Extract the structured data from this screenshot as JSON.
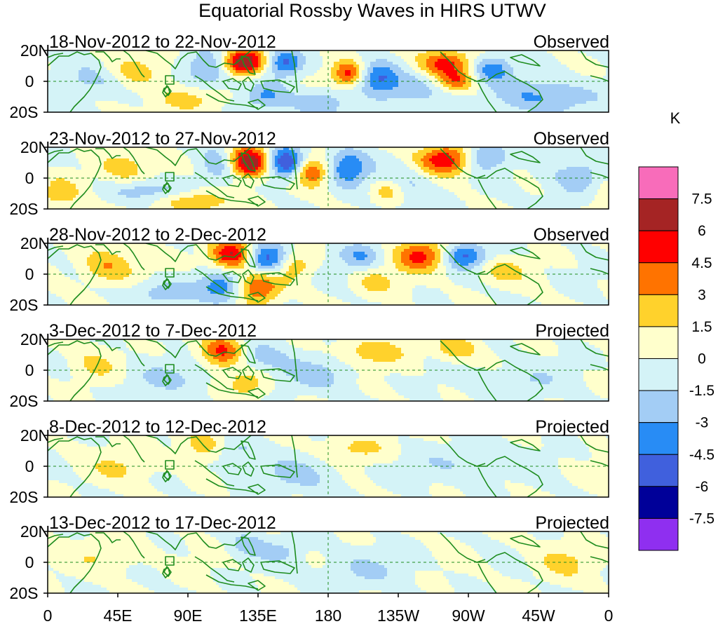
{
  "title": "Equatorial Rossby Waves in HIRS UTWV",
  "lat_labels": [
    "20N",
    "0",
    "20S"
  ],
  "lon_labels": [
    "0",
    "45E",
    "90E",
    "135E",
    "180",
    "135W",
    "90W",
    "45W",
    "0"
  ],
  "panels": [
    {
      "period": "18-Nov-2012 to 22-Nov-2012",
      "status": "Observed"
    },
    {
      "period": "23-Nov-2012 to 27-Nov-2012",
      "status": "Observed"
    },
    {
      "period": "28-Nov-2012 to 2-Dec-2012",
      "status": "Observed"
    },
    {
      "period": "3-Dec-2012 to 7-Dec-2012",
      "status": "Projected"
    },
    {
      "period": "8-Dec-2012 to 12-Dec-2012",
      "status": "Projected"
    },
    {
      "period": "13-Dec-2012 to 17-Dec-2012",
      "status": "Projected"
    }
  ],
  "colorbar": {
    "unit": "K",
    "labels": [
      "7.5",
      "6",
      "4.5",
      "3",
      "1.5",
      "0",
      "-1.5",
      "-3",
      "-4.5",
      "-6",
      "-7.5"
    ],
    "colors": [
      "#f86cba",
      "#a52424",
      "#ff0000",
      "#ff7300",
      "#ffd22c",
      "#ffffcc",
      "#d4f3f7",
      "#a3cdf5",
      "#288cf5",
      "#4060dd",
      "#000099",
      "#8f2ff0"
    ]
  },
  "map_colors": {
    "coast": "#1e8c1e",
    "neutral_positive": "#ffffcc",
    "neutral_negative": "#d4f3f7"
  },
  "chart_data": {
    "type": "heatmap",
    "title": "Equatorial Rossby Waves in HIRS UTWV",
    "variable": "HIRS UTWV anomaly",
    "unit": "K",
    "x_range": [
      0,
      360
    ],
    "y_range": [
      -20,
      20
    ],
    "contour_levels": [
      -7.5,
      -6,
      -4.5,
      -3,
      -1.5,
      0,
      1.5,
      3,
      4.5,
      6,
      7.5
    ],
    "panels": [
      {
        "label": "18-Nov-2012 to 22-Nov-2012",
        "type": "Observed",
        "anomalies": [
          {
            "lon": 125,
            "lat": 12,
            "peak": 8.5,
            "w": 10,
            "h": 6
          },
          {
            "lon": 152,
            "lat": 12,
            "peak": -5,
            "w": 8,
            "h": 6
          },
          {
            "lon": 105,
            "lat": 8,
            "peak": -4,
            "w": 12,
            "h": 8
          },
          {
            "lon": 193,
            "lat": 5,
            "peak": 5,
            "w": 7,
            "h": 6
          },
          {
            "lon": 212,
            "lat": 3,
            "peak": -4,
            "w": 9,
            "h": 7
          },
          {
            "lon": 255,
            "lat": 12,
            "peak": 5,
            "w": 12,
            "h": 6
          },
          {
            "lon": 262,
            "lat": 0,
            "peak": 4,
            "w": 9,
            "h": 5
          },
          {
            "lon": 285,
            "lat": 8,
            "peak": -4,
            "w": 9,
            "h": 6
          },
          {
            "lon": 55,
            "lat": 6,
            "peak": 2.5,
            "w": 15,
            "h": 8
          },
          {
            "lon": 28,
            "lat": 2,
            "peak": -2.5,
            "w": 14,
            "h": 8
          },
          {
            "lon": 140,
            "lat": -10,
            "peak": -3,
            "w": 10,
            "h": 6
          },
          {
            "lon": 175,
            "lat": -14,
            "peak": -3,
            "w": 12,
            "h": 6
          },
          {
            "lon": 235,
            "lat": -5,
            "peak": -2,
            "w": 20,
            "h": 8
          },
          {
            "lon": 320,
            "lat": -10,
            "peak": -3,
            "w": 25,
            "h": 8
          },
          {
            "lon": 90,
            "lat": -12,
            "peak": 2,
            "w": 15,
            "h": 6
          }
        ]
      },
      {
        "label": "23-Nov-2012 to 27-Nov-2012",
        "type": "Observed",
        "anomalies": [
          {
            "lon": 128,
            "lat": 10,
            "peak": 8.5,
            "w": 10,
            "h": 7
          },
          {
            "lon": 152,
            "lat": 10,
            "peak": -6.5,
            "w": 8,
            "h": 7
          },
          {
            "lon": 170,
            "lat": 4,
            "peak": 4.5,
            "w": 7,
            "h": 6
          },
          {
            "lon": 193,
            "lat": 7,
            "peak": -4.5,
            "w": 9,
            "h": 8
          },
          {
            "lon": 112,
            "lat": 9,
            "peak": -3.5,
            "w": 10,
            "h": 8
          },
          {
            "lon": 255,
            "lat": 12,
            "peak": 6,
            "w": 13,
            "h": 7
          },
          {
            "lon": 280,
            "lat": 14,
            "peak": -4,
            "w": 10,
            "h": 6
          },
          {
            "lon": 48,
            "lat": 6,
            "peak": 2.5,
            "w": 12,
            "h": 8
          },
          {
            "lon": 70,
            "lat": -8,
            "peak": -3,
            "w": 20,
            "h": 5
          },
          {
            "lon": 5,
            "lat": -10,
            "peak": 2.5,
            "w": 12,
            "h": 8
          },
          {
            "lon": 95,
            "lat": -14,
            "peak": 3,
            "w": 18,
            "h": 6
          },
          {
            "lon": 218,
            "lat": -8,
            "peak": 3,
            "w": 8,
            "h": 6
          },
          {
            "lon": 230,
            "lat": -3,
            "peak": -2,
            "w": 15,
            "h": 10
          },
          {
            "lon": 340,
            "lat": 0,
            "peak": -2.5,
            "w": 15,
            "h": 10
          }
        ]
      },
      {
        "label": "28-Nov-2012 to 2-Dec-2012",
        "type": "Observed",
        "anomalies": [
          {
            "lon": 118,
            "lat": 12,
            "peak": 6.5,
            "w": 10,
            "h": 7
          },
          {
            "lon": 140,
            "lat": 9,
            "peak": -6,
            "w": 10,
            "h": 7
          },
          {
            "lon": 158,
            "lat": 6,
            "peak": 3,
            "w": 8,
            "h": 6
          },
          {
            "lon": 240,
            "lat": 12,
            "peak": 5,
            "w": 12,
            "h": 7
          },
          {
            "lon": 268,
            "lat": 12,
            "peak": -5,
            "w": 10,
            "h": 6
          },
          {
            "lon": 200,
            "lat": 12,
            "peak": -3,
            "w": 10,
            "h": 6
          },
          {
            "lon": 135,
            "lat": -8,
            "peak": 5,
            "w": 10,
            "h": 8
          },
          {
            "lon": 112,
            "lat": -8,
            "peak": -4,
            "w": 10,
            "h": 8
          },
          {
            "lon": 38,
            "lat": 5,
            "peak": 3,
            "w": 12,
            "h": 8
          },
          {
            "lon": 210,
            "lat": -5,
            "peak": 2,
            "w": 10,
            "h": 6
          },
          {
            "lon": 75,
            "lat": -12,
            "peak": -2.5,
            "w": 15,
            "h": 6
          },
          {
            "lon": 290,
            "lat": 2,
            "peak": 2,
            "w": 12,
            "h": 6
          }
        ]
      },
      {
        "label": "3-Dec-2012 to 7-Dec-2012",
        "type": "Projected",
        "anomalies": [
          {
            "lon": 112,
            "lat": 12,
            "peak": 5,
            "w": 10,
            "h": 7
          },
          {
            "lon": 135,
            "lat": 8,
            "peak": -2.5,
            "w": 12,
            "h": 7
          },
          {
            "lon": 210,
            "lat": 12,
            "peak": 2.5,
            "w": 15,
            "h": 6
          },
          {
            "lon": 262,
            "lat": 14,
            "peak": 2.5,
            "w": 10,
            "h": 6
          },
          {
            "lon": 128,
            "lat": -8,
            "peak": 2.5,
            "w": 10,
            "h": 7
          },
          {
            "lon": 30,
            "lat": 2,
            "peak": 2,
            "w": 12,
            "h": 8
          },
          {
            "lon": 70,
            "lat": -5,
            "peak": -1.8,
            "w": 20,
            "h": 8
          },
          {
            "lon": 170,
            "lat": -3,
            "peak": -1.8,
            "w": 20,
            "h": 8
          },
          {
            "lon": 300,
            "lat": -8,
            "peak": -1.8,
            "w": 20,
            "h": 8
          }
        ]
      },
      {
        "label": "8-Dec-2012 to 12-Dec-2012",
        "type": "Projected",
        "anomalies": [
          {
            "lon": 100,
            "lat": 14,
            "peak": 2.5,
            "w": 10,
            "h": 6
          },
          {
            "lon": 120,
            "lat": 10,
            "peak": -2,
            "w": 10,
            "h": 6
          },
          {
            "lon": 200,
            "lat": 12,
            "peak": 1.8,
            "w": 15,
            "h": 6
          },
          {
            "lon": 50,
            "lat": 0,
            "peak": 1.6,
            "w": 15,
            "h": 8
          },
          {
            "lon": 160,
            "lat": -6,
            "peak": -1.8,
            "w": 20,
            "h": 8
          },
          {
            "lon": 270,
            "lat": 2,
            "peak": -1.6,
            "w": 25,
            "h": 8
          }
        ]
      },
      {
        "label": "13-Dec-2012 to 17-Dec-2012",
        "type": "Projected",
        "anomalies": [
          {
            "lon": 128,
            "lat": 12,
            "peak": -2,
            "w": 8,
            "h": 6
          },
          {
            "lon": 150,
            "lat": 8,
            "peak": -1.8,
            "w": 10,
            "h": 6
          },
          {
            "lon": 40,
            "lat": 5,
            "peak": 1.6,
            "w": 15,
            "h": 8
          },
          {
            "lon": 200,
            "lat": -5,
            "peak": -1.6,
            "w": 20,
            "h": 8
          },
          {
            "lon": 330,
            "lat": 0,
            "peak": 1.6,
            "w": 15,
            "h": 8
          }
        ]
      }
    ]
  }
}
